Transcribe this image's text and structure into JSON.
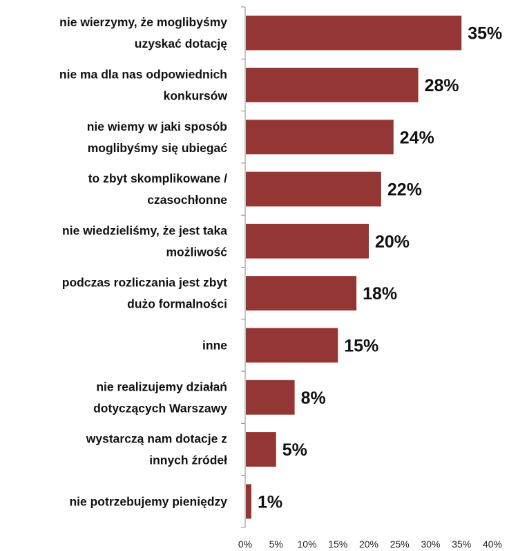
{
  "chart_data": {
    "type": "bar",
    "orientation": "horizontal",
    "categories": [
      [
        "nie wierzymy, że moglibyśmy",
        "uzyskać dotację"
      ],
      [
        "nie ma dla nas odpowiednich",
        "konkursów"
      ],
      [
        "nie wiemy w jaki sposób",
        "moglibyśmy się ubiegać"
      ],
      [
        "to zbyt skomplikowane  /",
        "czasochłonne"
      ],
      [
        "nie wiedzieliśmy, że jest taka",
        "możliwość"
      ],
      [
        "podczas rozliczania  jest zbyt",
        "dużo formalności"
      ],
      [
        "inne"
      ],
      [
        "nie realizujemy działań",
        "dotyczących Warszawy"
      ],
      [
        "wystarczą nam dotacje z",
        "innych źródeł"
      ],
      [
        "nie potrzebujemy pieniędzy"
      ]
    ],
    "values": [
      35,
      28,
      24,
      22,
      20,
      18,
      15,
      8,
      5,
      1
    ],
    "data_labels": [
      "35%",
      "28%",
      "24%",
      "22%",
      "20%",
      "18%",
      "15%",
      "8%",
      "5%",
      "1%"
    ],
    "x_ticks": [
      "0%",
      "5%",
      "10%",
      "15%",
      "20%",
      "25%",
      "30%",
      "35%",
      "40%"
    ],
    "xlim": [
      0,
      40
    ],
    "bar_color": "#943634",
    "grid": false,
    "legend": "none"
  }
}
